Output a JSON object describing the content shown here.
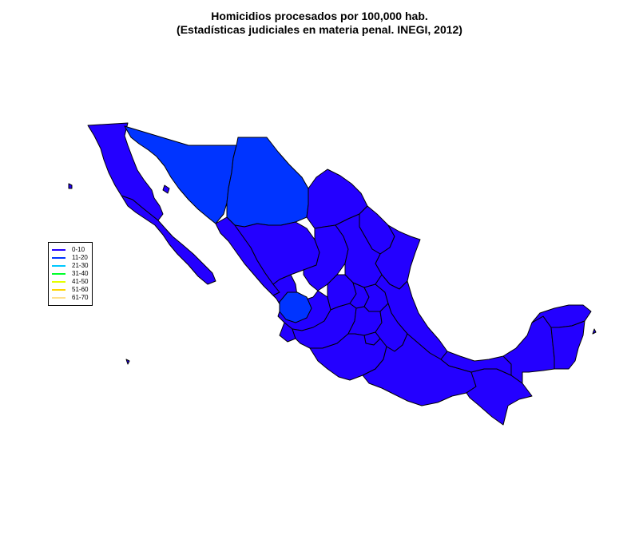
{
  "title": {
    "line1": "Homicidios procesados por 100,000 hab.",
    "line2": "(Estadísticas judiciales en materia penal. INEGI, 2012)"
  },
  "legend": {
    "items": [
      {
        "label": "0-10",
        "color": "#2400ff"
      },
      {
        "label": "11-20",
        "color": "#0034ff"
      },
      {
        "label": "21-30",
        "color": "#00c8ff"
      },
      {
        "label": "31-40",
        "color": "#00ff2a"
      },
      {
        "label": "41-50",
        "color": "#e6ff00"
      },
      {
        "label": "51-60",
        "color": "#ffd400"
      },
      {
        "label": "61-70",
        "color": "#ffe08a"
      }
    ]
  },
  "colors": {
    "range_0_10": "#2400ff",
    "range_11_20": "#0034ff",
    "border": "#000000"
  }
}
